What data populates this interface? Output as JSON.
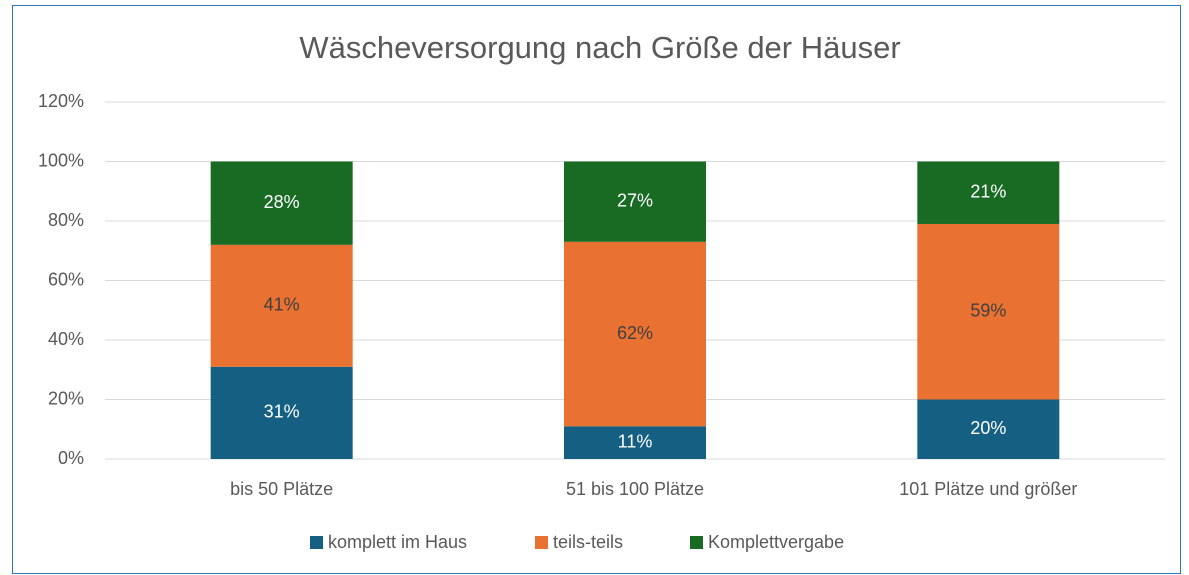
{
  "chart_data": {
    "type": "stacked_bar",
    "title": "Wäscheversorgung nach Größe der Häuser",
    "categories": [
      "bis 50 Plätze",
      "51 bis 100 Plätze",
      "101 Plätze und größer"
    ],
    "series": [
      {
        "name": "komplett im Haus",
        "color": "#156082",
        "values": [
          31,
          11,
          20
        ],
        "value_labels": [
          "31%",
          "11%",
          "20%"
        ]
      },
      {
        "name": "teils-teils",
        "color": "#e97132",
        "values": [
          41,
          62,
          59
        ],
        "value_labels": [
          "41%",
          "62%",
          "59%"
        ]
      },
      {
        "name": "Komplettvergabe",
        "color": "#196b24",
        "values": [
          28,
          27,
          21
        ],
        "value_labels": [
          "28%",
          "27%",
          "21%"
        ]
      }
    ],
    "ylim": [
      0,
      120
    ],
    "yticks": [
      {
        "value": 0,
        "label": "0%"
      },
      {
        "value": 20,
        "label": "20%"
      },
      {
        "value": 40,
        "label": "40%"
      },
      {
        "value": 60,
        "label": "60%"
      },
      {
        "value": 80,
        "label": "80%"
      },
      {
        "value": 100,
        "label": "100%"
      },
      {
        "value": 120,
        "label": "120%"
      }
    ],
    "grid": true,
    "legend": "bottom"
  }
}
